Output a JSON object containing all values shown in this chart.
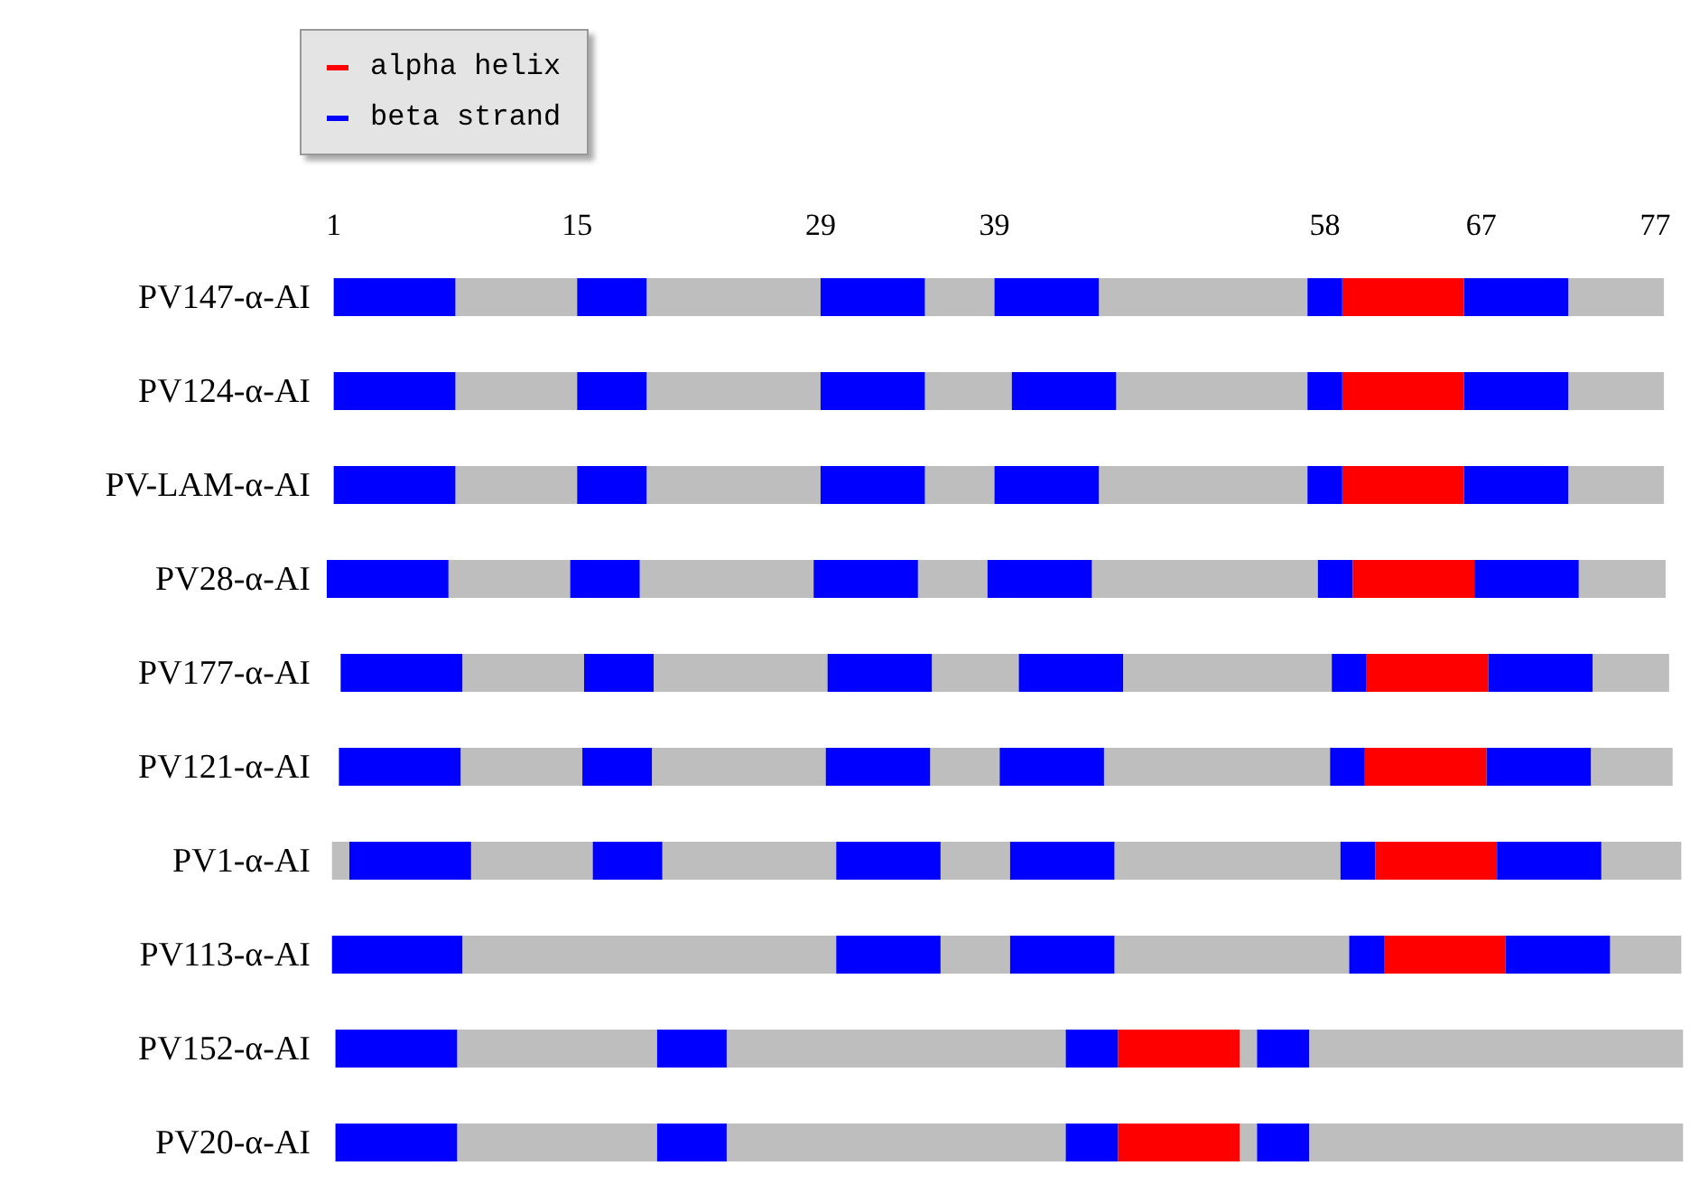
{
  "chart_data": {
    "type": "bar",
    "orientation": "horizontal",
    "categories": [
      "PV147-α-AI",
      "PV124-α-AI",
      "PV-LAM-α-AI",
      "PV28-α-AI",
      "PV177-α-AI",
      "PV121-α-AI",
      "PV1-α-AI",
      "PV113-α-AI",
      "PV152-α-AI",
      "PV20-α-AI"
    ],
    "xlim": [
      0.5,
      79
    ],
    "xticks": [
      1,
      15,
      29,
      39,
      58,
      67,
      77
    ],
    "legend": "top left",
    "series": [
      {
        "color": "#bebebe",
        "base": [
          null,
          null,
          null,
          null,
          null,
          null,
          0.9,
          null,
          null,
          null
        ],
        "values": [
          null,
          null,
          null,
          null,
          null,
          null,
          1,
          null,
          null,
          null
        ]
      },
      {
        "color": "#bebebe",
        "base": [
          8,
          8,
          8,
          7.6,
          8.4,
          8.3,
          8.9,
          8.4,
          8.1,
          8.1
        ],
        "values": [
          7,
          7,
          7,
          7,
          7,
          7,
          7,
          21.5,
          11.5,
          11.5
        ]
      },
      {
        "color": "#bebebe",
        "base": [
          19,
          19,
          19,
          18.6,
          19.4,
          19.3,
          19.9,
          35.9,
          23.6,
          23.6
        ],
        "values": [
          10,
          10,
          10,
          10,
          10,
          10,
          10,
          4,
          19.5,
          19.5
        ]
      },
      {
        "color": "#bebebe",
        "base": [
          35,
          35,
          35,
          34.6,
          35.4,
          35.3,
          35.9,
          45.9,
          53.1,
          53.1
        ],
        "values": [
          4,
          5,
          4,
          4,
          5,
          4,
          4,
          13.5,
          1,
          1
        ]
      },
      {
        "color": "#bebebe",
        "base": [
          45,
          46,
          45,
          44.6,
          46.4,
          45.3,
          45.9,
          74.4,
          57.1,
          57.1
        ],
        "values": [
          12,
          11,
          12,
          13,
          12,
          13,
          13,
          4.1,
          21.5,
          21.5
        ]
      },
      {
        "color": "#bebebe",
        "base": [
          72,
          72,
          72,
          72.6,
          73.4,
          73.3,
          73.9,
          null,
          null,
          null
        ],
        "values": [
          5.5,
          5.5,
          5.5,
          5,
          4.4,
          4.7,
          4.6,
          null,
          null,
          null
        ]
      },
      {
        "name": "alpha helix",
        "color": "#ff0000",
        "base": [
          59,
          59,
          59,
          59.6,
          60.4,
          60.3,
          60.9,
          61.4,
          46.1,
          46.1
        ],
        "values": [
          7,
          7,
          7,
          7,
          7,
          7,
          7,
          7,
          7,
          7
        ]
      },
      {
        "name": "beta strand",
        "color": "#0000ff",
        "base": [
          1,
          1,
          1,
          0.6,
          1.4,
          1.3,
          1.9,
          0.9,
          1.1,
          1.1
        ],
        "values": [
          7,
          7,
          7,
          7,
          7,
          7,
          7,
          7.5,
          7,
          7
        ]
      },
      {
        "color": "#0000ff",
        "base": [
          15,
          15,
          15,
          14.6,
          15.4,
          15.3,
          15.9,
          29.9,
          19.6,
          19.6
        ],
        "values": [
          4,
          4,
          4,
          4,
          4,
          4,
          4,
          6,
          4,
          4
        ]
      },
      {
        "color": "#0000ff",
        "base": [
          29,
          29,
          29,
          28.6,
          29.4,
          29.3,
          29.9,
          39.9,
          43.1,
          43.1
        ],
        "values": [
          6,
          6,
          6,
          6,
          6,
          6,
          6,
          6,
          3,
          3
        ]
      },
      {
        "color": "#0000ff",
        "base": [
          39,
          40,
          39,
          38.6,
          40.4,
          39.3,
          39.9,
          59.4,
          54.1,
          54.1
        ],
        "values": [
          6,
          6,
          6,
          6,
          6,
          6,
          6,
          2,
          3,
          3
        ]
      },
      {
        "color": "#0000ff",
        "base": [
          57,
          57,
          57,
          57.6,
          58.4,
          58.3,
          58.9,
          68.4,
          null,
          null
        ],
        "values": [
          2,
          2,
          2,
          2,
          2,
          2,
          2,
          6,
          null,
          null
        ]
      },
      {
        "color": "#0000ff",
        "base": [
          66,
          66,
          66,
          66.6,
          67.4,
          67.3,
          67.9,
          null,
          null,
          null
        ],
        "values": [
          6,
          6,
          6,
          6,
          6,
          6,
          6,
          null,
          null,
          null
        ]
      }
    ]
  }
}
